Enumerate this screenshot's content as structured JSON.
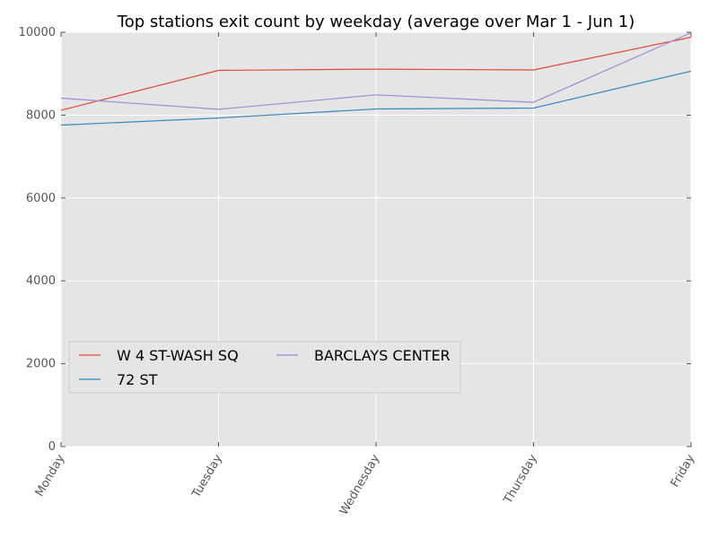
{
  "chart_data": {
    "type": "line",
    "title": "Top stations exit count by weekday (average over Mar 1 - Jun 1)",
    "xlabel": "",
    "ylabel": "",
    "categories": [
      "Monday",
      "Tuesday",
      "Wednesday",
      "Thursday",
      "Friday"
    ],
    "ylim": [
      0,
      10000
    ],
    "yticks": [
      "0",
      "2000",
      "4000",
      "6000",
      "8000",
      "10000"
    ],
    "grid": true,
    "legend_position": "center-left",
    "series": [
      {
        "name": "W 4 ST-WASH SQ",
        "color": "#E24A33",
        "values": [
          8120,
          9080,
          9110,
          9090,
          9880
        ]
      },
      {
        "name": "72 ST",
        "color": "#348ABD",
        "values": [
          7760,
          7930,
          8150,
          8170,
          9060
        ]
      },
      {
        "name": "BARCLAYS CENTER",
        "color": "#988ED5",
        "values": [
          8410,
          8140,
          8490,
          8310,
          9990
        ]
      }
    ]
  }
}
